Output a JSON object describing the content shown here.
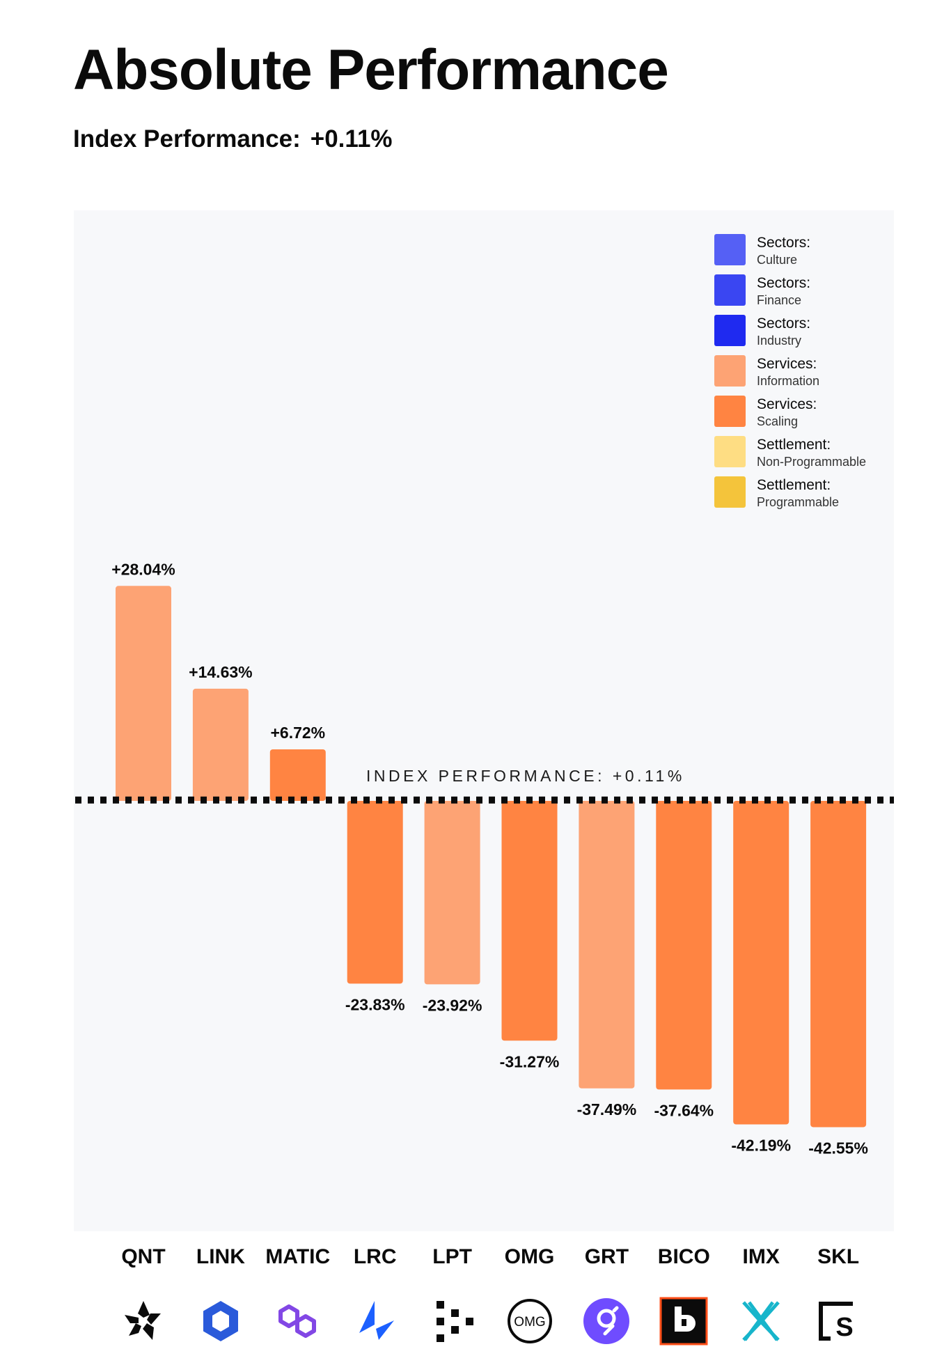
{
  "title": "Absolute Performance",
  "subtitle": {
    "label": "Index Performance:",
    "value": "+0.11%"
  },
  "colors": {
    "culture": "#5560f5",
    "finance": "#3a46f2",
    "industry": "#1f2af0",
    "information": "#fda374",
    "scaling": "#ff8442",
    "non_programmable": "#fedd83",
    "programmable": "#f4c43b",
    "panel": "#f7f8fa"
  },
  "legend": [
    {
      "title": "Sectors:",
      "sub": "Culture",
      "color": "#5560f5"
    },
    {
      "title": "Sectors:",
      "sub": "Finance",
      "color": "#3a46f2"
    },
    {
      "title": "Sectors:",
      "sub": "Industry",
      "color": "#1f2af0"
    },
    {
      "title": "Services:",
      "sub": "Information",
      "color": "#fda374"
    },
    {
      "title": "Services:",
      "sub": "Scaling",
      "color": "#ff8442"
    },
    {
      "title": "Settlement:",
      "sub": "Non-Programmable",
      "color": "#fedd83"
    },
    {
      "title": "Settlement:",
      "sub": "Programmable",
      "color": "#f4c43b"
    }
  ],
  "chart_data": {
    "type": "bar",
    "categories": [
      "QNT",
      "LINK",
      "MATIC",
      "LRC",
      "LPT",
      "OMG",
      "GRT",
      "BICO",
      "IMX",
      "SKL"
    ],
    "values": [
      28.04,
      14.63,
      6.72,
      -23.83,
      -23.92,
      -31.27,
      -37.49,
      -37.64,
      -42.19,
      -42.55
    ],
    "value_labels": [
      "+28.04%",
      "+14.63%",
      "+6.72%",
      "-23.83%",
      "-23.92%",
      "-31.27%",
      "-37.49%",
      "-37.64%",
      "-42.19%",
      "-42.55%"
    ],
    "bar_sectors": [
      "Services: Information",
      "Services: Information",
      "Services: Scaling",
      "Services: Scaling",
      "Services: Information",
      "Services: Scaling",
      "Services: Information",
      "Services: Scaling",
      "Services: Scaling",
      "Services: Scaling"
    ],
    "bar_colors": [
      "#fda374",
      "#fda374",
      "#ff8442",
      "#ff8442",
      "#fda374",
      "#ff8442",
      "#fda374",
      "#ff8442",
      "#ff8442",
      "#ff8442"
    ],
    "reference_line": {
      "value": 0.11,
      "label": "INDEX PERFORMANCE: +0.11%",
      "style": "dotted"
    },
    "legend_position": "top-right",
    "grid": false,
    "icons": [
      "quant-icon",
      "chainlink-icon",
      "polygon-icon",
      "loopring-icon",
      "livepeer-icon",
      "omg-icon",
      "the-graph-icon",
      "biconomy-icon",
      "immutable-x-icon",
      "skale-icon"
    ]
  }
}
